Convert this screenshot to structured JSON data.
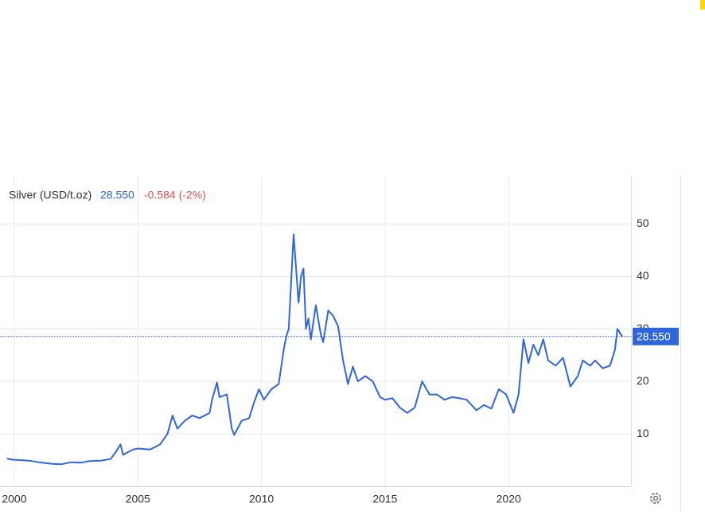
{
  "chart_data": {
    "type": "line",
    "title": "Silver (USD/t.oz)",
    "price": {
      "value": 28.55,
      "label": "28.550"
    },
    "change": "-0.584 (-2%)",
    "xlim": [
      1999.68,
      2024.95
    ],
    "xticks": [
      2000,
      2005,
      2010,
      2015,
      2020
    ],
    "ylim": [
      0,
      59
    ],
    "yticks": [
      10,
      20,
      30,
      40,
      50
    ],
    "grid": true,
    "series": [
      {
        "color": "#2f66db",
        "x": [
          1999.7,
          1999.9,
          2000.2,
          2000.6,
          2001.0,
          2001.5,
          2001.9,
          2002.3,
          2002.7,
          2003.0,
          2003.5,
          2003.9,
          2004.1,
          2004.3,
          2004.4,
          2004.8,
          2005.0,
          2005.5,
          2005.9,
          2006.2,
          2006.4,
          2006.6,
          2006.9,
          2007.2,
          2007.5,
          2007.9,
          2008.0,
          2008.2,
          2008.3,
          2008.6,
          2008.8,
          2008.9,
          2009.2,
          2009.5,
          2009.7,
          2009.9,
          2010.1,
          2010.4,
          2010.7,
          2010.9,
          2011.0,
          2011.1,
          2011.3,
          2011.5,
          2011.6,
          2011.7,
          2011.8,
          2011.9,
          2012.0,
          2012.2,
          2012.4,
          2012.5,
          2012.7,
          2012.9,
          2013.1,
          2013.3,
          2013.5,
          2013.7,
          2013.9,
          2014.2,
          2014.5,
          2014.8,
          2015.0,
          2015.3,
          2015.6,
          2015.9,
          2016.2,
          2016.5,
          2016.8,
          2017.1,
          2017.4,
          2017.7,
          2018.0,
          2018.3,
          2018.7,
          2019.0,
          2019.3,
          2019.6,
          2019.9,
          2020.2,
          2020.4,
          2020.6,
          2020.8,
          2021.0,
          2021.2,
          2021.4,
          2021.6,
          2021.9,
          2022.2,
          2022.5,
          2022.8,
          2023.0,
          2023.3,
          2023.5,
          2023.8,
          2024.1,
          2024.3,
          2024.4,
          2024.6
        ],
        "values": [
          5.3,
          5.1,
          5.0,
          4.9,
          4.6,
          4.3,
          4.2,
          4.6,
          4.5,
          4.8,
          4.9,
          5.2,
          6.5,
          8.0,
          6.0,
          7.0,
          7.2,
          7.0,
          8.0,
          10,
          13.5,
          11,
          12.5,
          13.5,
          13,
          14,
          16.5,
          19.8,
          17,
          17.5,
          11,
          9.8,
          12.5,
          13,
          16,
          18.5,
          16.5,
          18.5,
          19.5,
          26,
          28.5,
          30,
          48,
          35,
          40,
          41.5,
          30,
          32,
          28,
          34.5,
          29,
          27.5,
          33.5,
          32.5,
          30.5,
          24,
          19.5,
          22.8,
          20,
          21,
          20,
          17,
          16.5,
          16.8,
          15,
          14,
          15,
          20,
          17.5,
          17.5,
          16.5,
          17,
          16.8,
          16.5,
          14.5,
          15.5,
          14.8,
          18.5,
          17.5,
          14,
          17.5,
          28,
          23.5,
          27,
          25,
          28,
          24,
          23,
          24.5,
          19,
          21,
          24,
          23,
          24,
          22.5,
          23,
          26,
          30,
          28.55
        ]
      }
    ]
  }
}
